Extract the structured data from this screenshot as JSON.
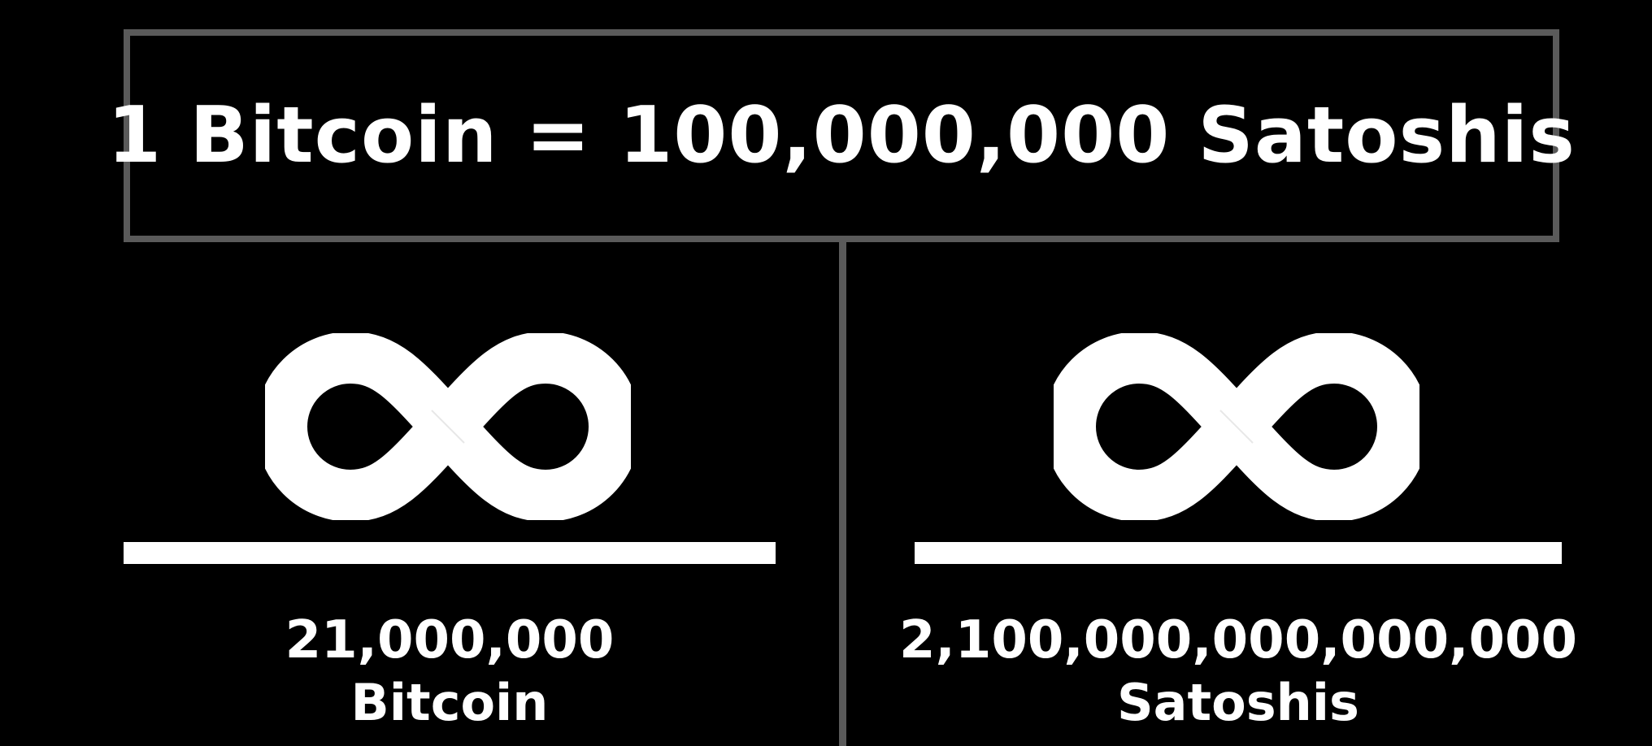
{
  "title": "1 Bitcoin = 100,000,000 Satoshis",
  "colors": {
    "background": "#000000",
    "foreground": "#ffffff",
    "border": "#5a5a5a"
  },
  "left": {
    "icon": "infinity-icon",
    "amount": "21,000,000",
    "unit": "Bitcoin"
  },
  "right": {
    "icon": "infinity-icon",
    "amount": "2,100,000,000,000,000",
    "unit": "Satoshis"
  }
}
